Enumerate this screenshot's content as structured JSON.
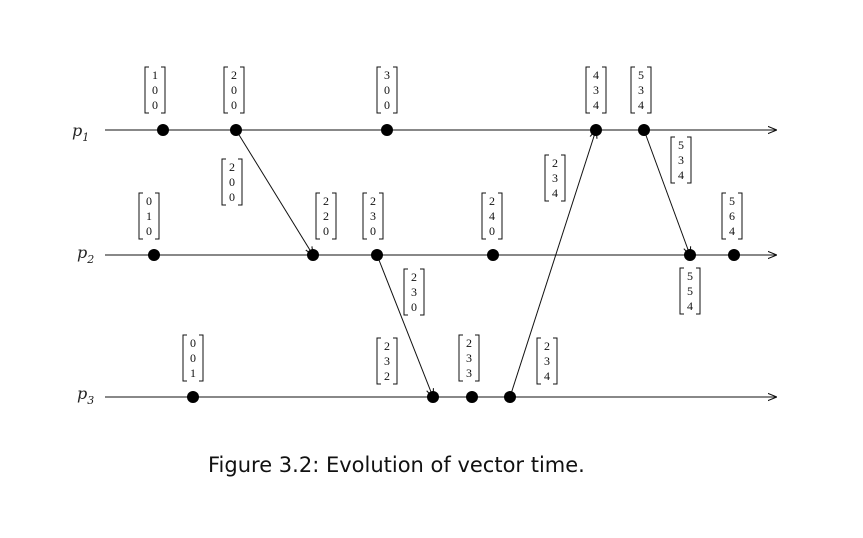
{
  "processes": [
    {
      "id": "p1",
      "base": "p",
      "sub": "1"
    },
    {
      "id": "p2",
      "base": "p",
      "sub": "2"
    },
    {
      "id": "p3",
      "base": "p",
      "sub": "3"
    }
  ],
  "events": [
    {
      "id": "e11",
      "process": "p1",
      "vector": [
        "1",
        "0",
        "0"
      ]
    },
    {
      "id": "e12",
      "process": "p1",
      "vector": [
        "2",
        "0",
        "0"
      ]
    },
    {
      "id": "e13",
      "process": "p1",
      "vector": [
        "3",
        "0",
        "0"
      ]
    },
    {
      "id": "e14",
      "process": "p1",
      "vector": [
        "4",
        "3",
        "4"
      ]
    },
    {
      "id": "e15",
      "process": "p1",
      "vector": [
        "5",
        "3",
        "4"
      ]
    },
    {
      "id": "e21",
      "process": "p2",
      "vector": [
        "0",
        "1",
        "0"
      ]
    },
    {
      "id": "e22",
      "process": "p2",
      "vector": [
        "2",
        "2",
        "0"
      ]
    },
    {
      "id": "e23",
      "process": "p2",
      "vector": [
        "2",
        "3",
        "0"
      ]
    },
    {
      "id": "e24",
      "process": "p2",
      "vector": [
        "2",
        "4",
        "0"
      ]
    },
    {
      "id": "e25",
      "process": "p2",
      "vector": [
        "5",
        "5",
        "4"
      ]
    },
    {
      "id": "e26",
      "process": "p2",
      "vector": [
        "5",
        "6",
        "4"
      ]
    },
    {
      "id": "e31",
      "process": "p3",
      "vector": [
        "0",
        "0",
        "1"
      ]
    },
    {
      "id": "e32",
      "process": "p3",
      "vector": [
        "2",
        "3",
        "2"
      ]
    },
    {
      "id": "e33",
      "process": "p3",
      "vector": [
        "2",
        "3",
        "3"
      ]
    },
    {
      "id": "e34",
      "process": "p3",
      "vector": [
        "2",
        "3",
        "4"
      ]
    }
  ],
  "messages": [
    {
      "id": "m1",
      "from": "e12",
      "to": "e22",
      "vector": [
        "2",
        "0",
        "0"
      ]
    },
    {
      "id": "m2",
      "from": "e23",
      "to": "e32",
      "vector": [
        "2",
        "3",
        "0"
      ]
    },
    {
      "id": "m3",
      "from": "e34",
      "to": "e14",
      "vector": [
        "2",
        "3",
        "4"
      ]
    },
    {
      "id": "m4",
      "from": "e15",
      "to": "e25",
      "vector": [
        "5",
        "3",
        "4"
      ]
    }
  ],
  "caption": "Figure 3.2: Evolution of vector time."
}
